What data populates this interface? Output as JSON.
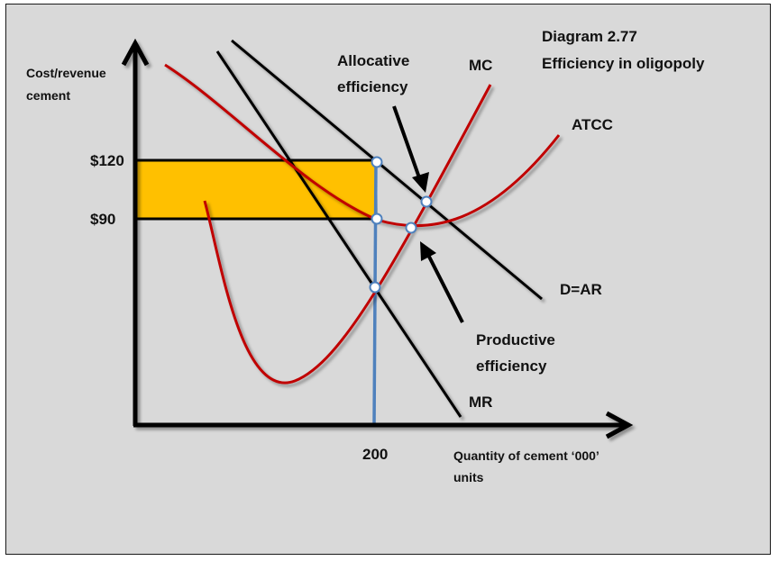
{
  "title_line1": "Diagram 2.77",
  "title_line2": "Efficiency in oligopoly",
  "y_axis_label_line1": "Cost/revenue",
  "y_axis_label_line2": "cement",
  "x_axis_label_line1": "Quantity of cement ‘000’",
  "x_axis_label_line2": "units",
  "tick_price_high": "$120",
  "tick_price_low": "$90",
  "tick_quantity": "200",
  "curve_mc": "MC",
  "curve_atcc": "ATCC",
  "curve_demand": "D=AR",
  "curve_mr": "MR",
  "annotation_allocative_line1": "Allocative",
  "annotation_allocative_line2": "efficiency",
  "annotation_productive_line1": "Productive",
  "annotation_productive_line2": "efficiency",
  "colors": {
    "background": "#d9d9d9",
    "cost_curves": "#c00000",
    "revenue_curves": "#000000",
    "quantity_line": "#4f81bd",
    "profit_area": "#ffc000"
  }
}
